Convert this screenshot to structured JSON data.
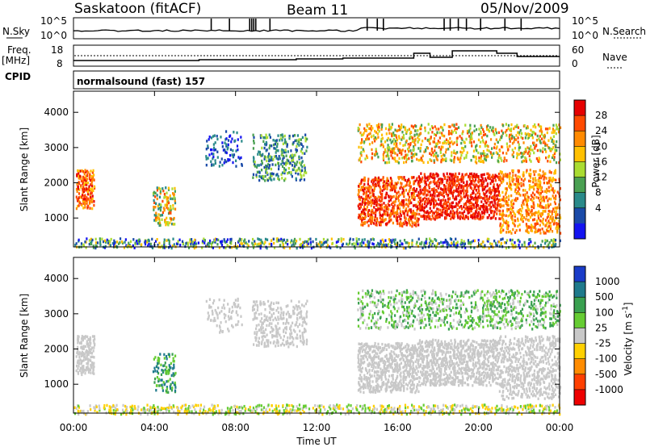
{
  "header": {
    "station": "Saskatoon (fitACF)",
    "beam": "Beam 11",
    "date": "05/Nov/2009"
  },
  "top_panels": {
    "nsky_label": "N.Sky",
    "nsky_ticks": [
      "10^5",
      "10^0"
    ],
    "nsearch_label": "N.Search",
    "nsearch_ticks": [
      "10^5",
      "10^0"
    ],
    "freq_label": "Freq.",
    "freq_unit": "[MHz]",
    "freq_ticks": [
      "18",
      "8"
    ],
    "nave_label": "Nave",
    "nave_ticks": [
      "60",
      "0"
    ],
    "cpid_label": "CPID",
    "cpid_text": "normalsound (fast) 157"
  },
  "chart_data": [
    {
      "type": "heatmap",
      "name": "power-panel",
      "ylabel": "Slant Range [km]",
      "ylim": [
        180,
        4600
      ],
      "yticks": [
        1000,
        2000,
        3000,
        4000
      ],
      "xlim": [
        0,
        24
      ],
      "colorbar": {
        "label": "Power [dB]",
        "ticks": [
          "28",
          "24",
          "20",
          "16",
          "12",
          "8",
          "4"
        ],
        "colors": [
          "#e60000",
          "#ff4a00",
          "#ff8a00",
          "#ffc000",
          "#aadc32",
          "#4aa052",
          "#2a8a8a",
          "#1a4aa8",
          "#1414f0"
        ]
      }
    },
    {
      "type": "heatmap",
      "name": "velocity-panel",
      "ylabel": "Slant Range [km]",
      "ylim": [
        180,
        4600
      ],
      "yticks": [
        1000,
        2000,
        3000,
        4000
      ],
      "xlim": [
        0,
        24
      ],
      "colorbar": {
        "label": "Velocity [m s^-1]",
        "ticks": [
          "1000",
          "500",
          "100",
          "25",
          "-25",
          "-100",
          "-500",
          "-1000"
        ],
        "colors": [
          "#1a3cc8",
          "#1f7a8c",
          "#3aa050",
          "#66cc33",
          "#c8c8c8",
          "#ffd000",
          "#ff8c00",
          "#ff4000",
          "#ee0000"
        ]
      }
    }
  ],
  "xaxis": {
    "ticks": [
      "00:00",
      "04:00",
      "08:00",
      "12:00",
      "16:00",
      "20:00",
      "00:00"
    ],
    "label": "Time UT"
  }
}
